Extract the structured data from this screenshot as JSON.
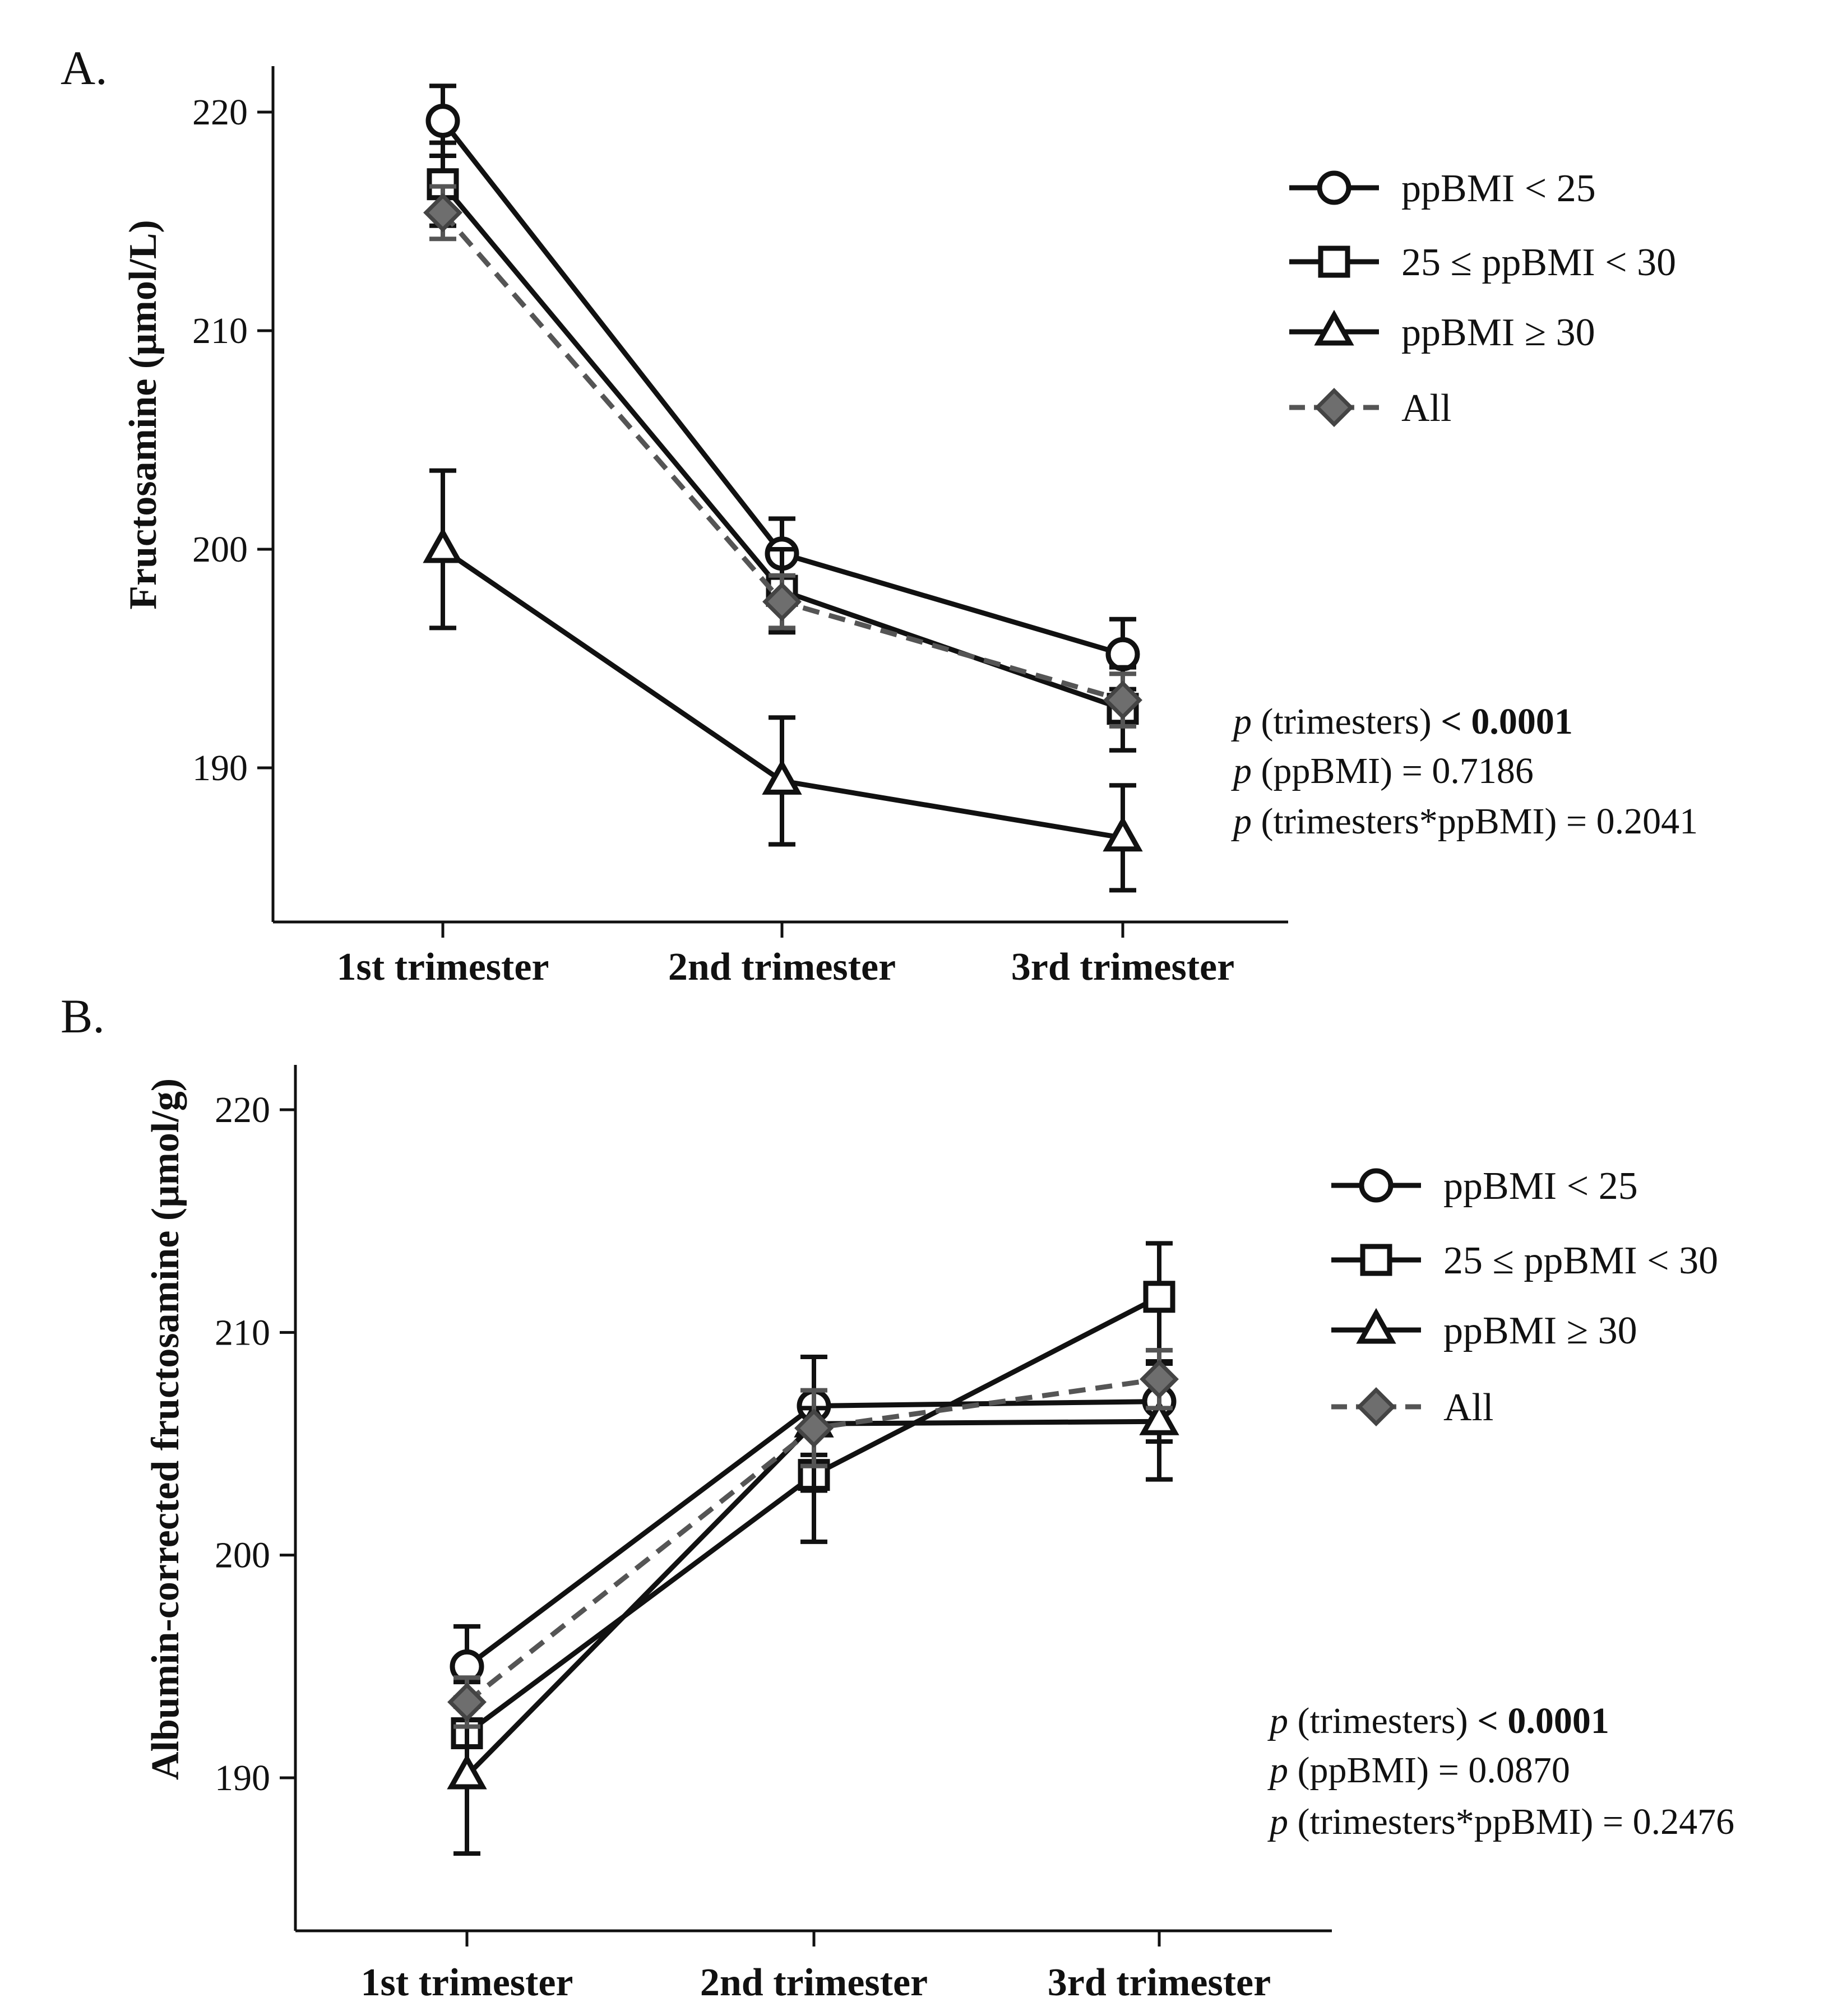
{
  "chart_data": [
    {
      "panel": "A.",
      "type": "line",
      "ylabel": "Fructosamine (µmol/L)",
      "xlabel": "",
      "categories": [
        "1st trimester",
        "2nd trimester",
        "3rd trimester"
      ],
      "ylim": [
        183,
        222
      ],
      "yticks": [
        190,
        200,
        210,
        220
      ],
      "series": [
        {
          "name": "ppBMI < 25",
          "marker": "circle",
          "color": "#111111",
          "dashed": false,
          "values": [
            219.6,
            199.8,
            195.2
          ],
          "err": [
            1.6,
            1.6,
            1.6
          ]
        },
        {
          "name": "25 ≤ ppBMI < 30",
          "marker": "square",
          "color": "#111111",
          "dashed": false,
          "values": [
            216.7,
            198.1,
            192.7
          ],
          "err": [
            1.9,
            1.9,
            1.9
          ]
        },
        {
          "name": "ppBMI ≥ 30",
          "marker": "triangle",
          "color": "#111111",
          "dashed": false,
          "values": [
            200.0,
            189.4,
            186.8
          ],
          "err": [
            3.6,
            2.9,
            2.4
          ]
        },
        {
          "name": "All",
          "marker": "diamond",
          "color": "#555555",
          "dashed": true,
          "values": [
            215.4,
            197.6,
            193.1
          ],
          "err": [
            1.2,
            1.2,
            1.2
          ]
        }
      ],
      "stats": [
        {
          "p": "p",
          "label": " (trimesters) ",
          "bold": "< 0.0001",
          "rest": ""
        },
        {
          "p": "p",
          "label": " (ppBMI) = 0.7186",
          "bold": "",
          "rest": ""
        },
        {
          "p": "p",
          "label": " (trimesters*ppBMI) = 0.2041",
          "bold": "",
          "rest": ""
        }
      ]
    },
    {
      "panel": "B.",
      "type": "line",
      "ylabel": "Albumin-corrected fructosamine (µmol/g)",
      "xlabel": "",
      "categories": [
        "1st trimester",
        "2nd trimester",
        "3rd trimester"
      ],
      "ylim": [
        183,
        222
      ],
      "yticks": [
        190,
        200,
        210,
        220
      ],
      "series": [
        {
          "name": "ppBMI < 25",
          "marker": "circle",
          "color": "#111111",
          "dashed": false,
          "values": [
            195.0,
            206.7,
            206.9
          ],
          "err": [
            1.8,
            2.2,
            1.8
          ]
        },
        {
          "name": "25 ≤ ppBMI < 30",
          "marker": "square",
          "color": "#111111",
          "dashed": false,
          "values": [
            192.0,
            203.6,
            211.6
          ],
          "err": [
            2.3,
            3.0,
            2.4
          ]
        },
        {
          "name": "ppBMI ≥ 30",
          "marker": "triangle",
          "color": "#111111",
          "dashed": false,
          "values": [
            190.1,
            205.9,
            206.0
          ],
          "err": [
            3.5,
            3.0,
            2.6
          ]
        },
        {
          "name": "All",
          "marker": "diamond",
          "color": "#555555",
          "dashed": true,
          "values": [
            193.4,
            205.7,
            207.9
          ],
          "err": [
            1.1,
            1.7,
            1.3
          ]
        }
      ],
      "stats": [
        {
          "p": "p",
          "label": " (trimesters) ",
          "bold": "< 0.0001",
          "rest": ""
        },
        {
          "p": "p",
          "label": " (ppBMI) = 0.0870",
          "bold": "",
          "rest": ""
        },
        {
          "p": "p",
          "label": " (trimesters*ppBMI) = 0.2476",
          "bold": "",
          "rest": ""
        }
      ]
    }
  ]
}
